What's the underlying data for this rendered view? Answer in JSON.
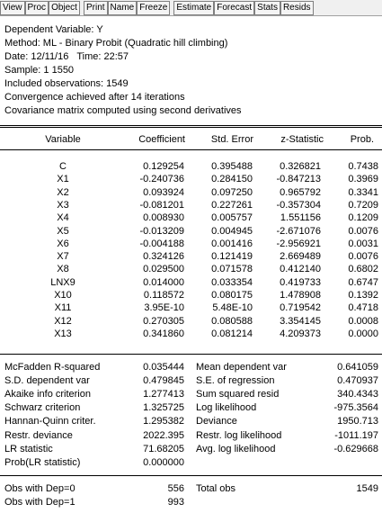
{
  "toolbar": {
    "groups": [
      [
        "View",
        "Proc",
        "Object"
      ],
      [
        "Print",
        "Name",
        "Freeze"
      ],
      [
        "Estimate",
        "Forecast",
        "Stats",
        "Resids"
      ]
    ]
  },
  "header": {
    "lines": [
      "Dependent Variable: Y",
      "Method: ML - Binary Probit (Quadratic hill climbing)",
      "Date: 12/11/16   Time: 22:57",
      "Sample: 1 1550",
      "Included observations: 1549",
      "Convergence achieved after 14 iterations",
      "Covariance matrix computed using second derivatives"
    ]
  },
  "table": {
    "columns": [
      "Variable",
      "Coefficient",
      "Std. Error",
      "z-Statistic",
      "Prob."
    ],
    "rows": [
      [
        "C",
        "0.129254",
        "0.395488",
        "0.326821",
        "0.7438"
      ],
      [
        "X1",
        "-0.240736",
        "0.284150",
        "-0.847213",
        "0.3969"
      ],
      [
        "X2",
        "0.093924",
        "0.097250",
        "0.965792",
        "0.3341"
      ],
      [
        "X3",
        "-0.081201",
        "0.227261",
        "-0.357304",
        "0.7209"
      ],
      [
        "X4",
        "0.008930",
        "0.005757",
        "1.551156",
        "0.1209"
      ],
      [
        "X5",
        "-0.013209",
        "0.004945",
        "-2.671076",
        "0.0076"
      ],
      [
        "X6",
        "-0.004188",
        "0.001416",
        "-2.956921",
        "0.0031"
      ],
      [
        "X7",
        "0.324126",
        "0.121419",
        "2.669489",
        "0.0076"
      ],
      [
        "X8",
        "0.029500",
        "0.071578",
        "0.412140",
        "0.6802"
      ],
      [
        "LNX9",
        "0.014000",
        "0.033354",
        "0.419733",
        "0.6747"
      ],
      [
        "X10",
        "0.118572",
        "0.080175",
        "1.478908",
        "0.1392"
      ],
      [
        "X11",
        "3.95E-10",
        "5.48E-10",
        "0.719542",
        "0.4718"
      ],
      [
        "X12",
        "0.270305",
        "0.080588",
        "3.354145",
        "0.0008"
      ],
      [
        "X13",
        "0.341860",
        "0.081214",
        "4.209373",
        "0.0000"
      ]
    ]
  },
  "stats": {
    "rows": [
      [
        "McFadden R-squared",
        "0.035444",
        "Mean dependent var",
        "0.641059"
      ],
      [
        "S.D. dependent var",
        "0.479845",
        "S.E. of regression",
        "0.470937"
      ],
      [
        "Akaike info criterion",
        "1.277413",
        "Sum squared resid",
        "340.4343"
      ],
      [
        "Schwarz criterion",
        "1.325725",
        "Log likelihood",
        "-975.3564"
      ],
      [
        "Hannan-Quinn criter.",
        "1.295382",
        "Deviance",
        "1950.713"
      ],
      [
        "Restr. deviance",
        "2022.395",
        "Restr. log likelihood",
        "-1011.197"
      ],
      [
        "LR statistic",
        "71.68205",
        "Avg. log likelihood",
        "-0.629668"
      ],
      [
        "Prob(LR statistic)",
        "0.000000"
      ]
    ]
  },
  "obs": {
    "rows": [
      [
        "Obs with Dep=0",
        "556",
        "Total obs",
        "1549"
      ],
      [
        "Obs with Dep=1",
        "993"
      ]
    ]
  }
}
